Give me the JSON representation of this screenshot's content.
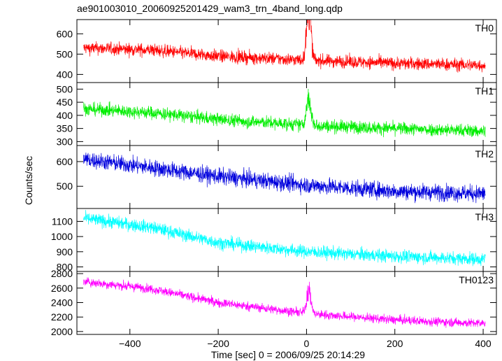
{
  "chart_data": {
    "type": "line",
    "title": "ae901003010_20060925201429_wam3_trn_4band_long.qdp",
    "xlabel": "Time [sec] 0 = 2006/09/25 20:14:29",
    "ylabel": "Counts/sec",
    "xlim": [
      -520,
      430
    ],
    "x_ticks": [
      -400,
      -200,
      0,
      200,
      400
    ],
    "x_tick_labels": [
      "−400",
      "−200",
      "0",
      "200",
      "400"
    ],
    "x_range": [
      -505,
      405
    ],
    "panels": [
      {
        "name": "TH0",
        "color": "#ff0000",
        "ylim": [
          360,
          670
        ],
        "yticks": [
          400,
          500,
          600
        ],
        "trend": [
          [
            -505,
            530
          ],
          [
            -350,
            520
          ],
          [
            -200,
            490
          ],
          [
            0,
            470
          ],
          [
            200,
            455
          ],
          [
            405,
            445
          ]
        ],
        "noise": 28,
        "flare": {
          "x": 5,
          "width": 7,
          "amplitude": 260
        }
      },
      {
        "name": "TH1",
        "color": "#00ee00",
        "ylim": [
          285,
          525
        ],
        "yticks": [
          300,
          350,
          400,
          450,
          500
        ],
        "trend": [
          [
            -505,
            425
          ],
          [
            -350,
            410
          ],
          [
            -200,
            385
          ],
          [
            0,
            362
          ],
          [
            200,
            350
          ],
          [
            405,
            340
          ]
        ],
        "noise": 22,
        "flare": {
          "x": 5,
          "width": 7,
          "amplitude": 110
        }
      },
      {
        "name": "TH2",
        "color": "#0000dd",
        "ylim": [
          410,
          665
        ],
        "yticks": [
          500,
          600
        ],
        "trend": [
          [
            -505,
            610
          ],
          [
            -350,
            575
          ],
          [
            -200,
            540
          ],
          [
            0,
            505
          ],
          [
            200,
            480
          ],
          [
            405,
            470
          ]
        ],
        "noise": 30,
        "flare": null
      },
      {
        "name": "TH3",
        "color": "#00ffff",
        "ylim": [
          770,
          1185
        ],
        "yticks": [
          800,
          900,
          1000,
          1100
        ],
        "trend": [
          [
            -505,
            1120
          ],
          [
            -350,
            1060
          ],
          [
            -200,
            960
          ],
          [
            0,
            900
          ],
          [
            200,
            870
          ],
          [
            405,
            850
          ]
        ],
        "noise": 38,
        "flare": null
      },
      {
        "name": "TH0123",
        "color": "#ff00ff",
        "ylim": [
          1960,
          2830
        ],
        "yticks": [
          2000,
          2200,
          2400,
          2600,
          2800
        ],
        "trend": [
          [
            -505,
            2690
          ],
          [
            -350,
            2590
          ],
          [
            -200,
            2400
          ],
          [
            0,
            2250
          ],
          [
            200,
            2160
          ],
          [
            405,
            2110
          ]
        ],
        "noise": 55,
        "flare": {
          "x": 5,
          "width": 7,
          "amplitude": 330
        }
      }
    ],
    "grid": false,
    "legend": "panel labels top-right"
  }
}
